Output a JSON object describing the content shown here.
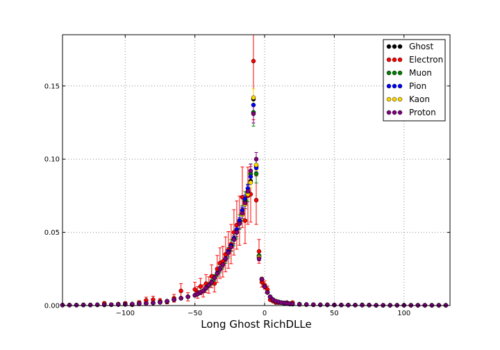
{
  "chart_data": {
    "type": "scatter",
    "title": "",
    "xlabel": "Long Ghost RichDLLe",
    "ylabel": "",
    "xlim": [
      -145,
      133
    ],
    "ylim": [
      0,
      0.185
    ],
    "xticks": [
      -100,
      -50,
      0,
      50,
      100
    ],
    "xtick_labels": [
      "−100",
      "−50",
      "0",
      "50",
      "100"
    ],
    "yticks": [
      0.0,
      0.05,
      0.1,
      0.15
    ],
    "ytick_labels": [
      "0.00",
      "0.05",
      "0.10",
      "0.15"
    ],
    "grid": true,
    "legend_position": "top-right",
    "x": [
      -145,
      -140,
      -135,
      -130,
      -125,
      -120,
      -115,
      -110,
      -105,
      -100,
      -95,
      -90,
      -85,
      -80,
      -75,
      -70,
      -65,
      -60,
      -55,
      -50,
      -48,
      -46,
      -44,
      -42,
      -40,
      -38,
      -36,
      -34,
      -32,
      -30,
      -28,
      -26,
      -24,
      -22,
      -20,
      -18,
      -16,
      -14,
      -12,
      -10,
      -8,
      -6,
      -4,
      -2,
      0,
      2,
      4,
      6,
      8,
      10,
      12,
      14,
      16,
      18,
      20,
      25,
      30,
      35,
      40,
      45,
      50,
      55,
      60,
      65,
      70,
      75,
      80,
      85,
      90,
      95,
      100,
      105,
      110,
      115,
      120,
      125,
      130
    ],
    "series": [
      {
        "name": "Ghost",
        "color": "#000000",
        "values": [
          0.0003,
          0.0003,
          0.0003,
          0.0004,
          0.0004,
          0.0005,
          0.0005,
          0.0006,
          0.0007,
          0.0008,
          0.001,
          0.0012,
          0.0015,
          0.0018,
          0.0022,
          0.003,
          0.004,
          0.005,
          0.006,
          0.007,
          0.008,
          0.009,
          0.01,
          0.012,
          0.014,
          0.016,
          0.019,
          0.022,
          0.025,
          0.028,
          0.032,
          0.036,
          0.04,
          0.045,
          0.05,
          0.056,
          0.063,
          0.071,
          0.078,
          0.085,
          0.141,
          0.095,
          0.034,
          0.018,
          0.013,
          0.009,
          0.006,
          0.004,
          0.003,
          0.0025,
          0.002,
          0.0018,
          0.0015,
          0.0012,
          0.001,
          0.0008,
          0.0007,
          0.0006,
          0.0005,
          0.0005,
          0.0004,
          0.0004,
          0.0003,
          0.0003,
          0.0003,
          0.0003,
          0.0002,
          0.0002,
          0.0002,
          0.0002,
          0.0002,
          0.0002,
          0.0002,
          0.0002,
          0.0002,
          0.0002,
          0.0002
        ]
      },
      {
        "name": "Electron",
        "color": "#ff0000",
        "values": [
          0.0,
          0.0,
          0.0,
          0.0005,
          0.0,
          0.0,
          0.0015,
          0.0,
          0.001,
          0.0015,
          0.0005,
          0.002,
          0.0035,
          0.004,
          0.003,
          0.0025,
          0.005,
          0.01,
          0.006,
          0.011,
          0.009,
          0.013,
          0.01,
          0.015,
          0.014,
          0.02,
          0.015,
          0.025,
          0.029,
          0.03,
          0.035,
          0.038,
          0.042,
          0.05,
          0.055,
          0.058,
          0.074,
          0.058,
          0.075,
          0.076,
          0.167,
          0.072,
          0.037,
          0.016,
          0.014,
          0.011,
          0.004,
          0.003,
          0.002,
          0.002,
          0.002,
          0.0015,
          0.002,
          0.001,
          0.002,
          0.001,
          0.0,
          0.0005,
          0.0,
          0.0005,
          0.0,
          0.0,
          0.0,
          0.0,
          0.0005,
          0.0,
          0.0,
          0.0,
          0.0,
          0.0,
          0.0,
          0.0,
          0.0,
          0.0,
          0.0,
          0.0,
          0.0
        ]
      },
      {
        "name": "Muon",
        "color": "#008000",
        "values": [
          0.0003,
          0.0003,
          0.0003,
          0.0004,
          0.0004,
          0.0005,
          0.0005,
          0.0006,
          0.0007,
          0.0008,
          0.001,
          0.0012,
          0.0015,
          0.0018,
          0.0022,
          0.003,
          0.004,
          0.005,
          0.006,
          0.007,
          0.008,
          0.009,
          0.01,
          0.012,
          0.014,
          0.016,
          0.019,
          0.022,
          0.025,
          0.028,
          0.032,
          0.036,
          0.041,
          0.045,
          0.05,
          0.057,
          0.063,
          0.072,
          0.077,
          0.09,
          0.132,
          0.09,
          0.034,
          0.018,
          0.013,
          0.009,
          0.006,
          0.004,
          0.003,
          0.0025,
          0.002,
          0.0018,
          0.0015,
          0.0012,
          0.001,
          0.0008,
          0.0007,
          0.0006,
          0.0005,
          0.0005,
          0.0004,
          0.0004,
          0.0003,
          0.0003,
          0.0003,
          0.0003,
          0.0002,
          0.0002,
          0.0002,
          0.0002,
          0.0002,
          0.0002,
          0.0002,
          0.0002,
          0.0002,
          0.0002,
          0.0002
        ]
      },
      {
        "name": "Pion",
        "color": "#0000ff",
        "values": [
          0.0003,
          0.0003,
          0.0003,
          0.0004,
          0.0004,
          0.0005,
          0.0005,
          0.0006,
          0.0007,
          0.0008,
          0.001,
          0.0012,
          0.0015,
          0.0018,
          0.0022,
          0.003,
          0.004,
          0.005,
          0.006,
          0.007,
          0.008,
          0.009,
          0.01,
          0.012,
          0.014,
          0.016,
          0.019,
          0.022,
          0.025,
          0.028,
          0.032,
          0.037,
          0.041,
          0.046,
          0.052,
          0.058,
          0.065,
          0.073,
          0.08,
          0.088,
          0.137,
          0.094,
          0.033,
          0.018,
          0.013,
          0.009,
          0.006,
          0.004,
          0.003,
          0.0025,
          0.002,
          0.0018,
          0.0015,
          0.0012,
          0.001,
          0.0008,
          0.0007,
          0.0006,
          0.0005,
          0.0005,
          0.0004,
          0.0004,
          0.0003,
          0.0003,
          0.0003,
          0.0003,
          0.0002,
          0.0002,
          0.0002,
          0.0002,
          0.0002,
          0.0002,
          0.0002,
          0.0002,
          0.0002,
          0.0002,
          0.0002
        ]
      },
      {
        "name": "Kaon",
        "color": "#ffd700",
        "values": [
          0.0003,
          0.0003,
          0.0003,
          0.0004,
          0.0004,
          0.0005,
          0.0005,
          0.0006,
          0.0007,
          0.0008,
          0.001,
          0.0012,
          0.0015,
          0.0018,
          0.0022,
          0.003,
          0.004,
          0.005,
          0.006,
          0.007,
          0.008,
          0.009,
          0.01,
          0.012,
          0.014,
          0.016,
          0.019,
          0.022,
          0.025,
          0.028,
          0.032,
          0.036,
          0.04,
          0.045,
          0.05,
          0.056,
          0.062,
          0.069,
          0.076,
          0.084,
          0.142,
          0.096,
          0.033,
          0.018,
          0.013,
          0.009,
          0.006,
          0.004,
          0.003,
          0.0025,
          0.002,
          0.0018,
          0.0015,
          0.0012,
          0.001,
          0.0008,
          0.0007,
          0.0006,
          0.0005,
          0.0005,
          0.0004,
          0.0004,
          0.0003,
          0.0003,
          0.0003,
          0.0003,
          0.0002,
          0.0002,
          0.0002,
          0.0002,
          0.0002,
          0.0002,
          0.0002,
          0.0002,
          0.0002,
          0.0002,
          0.0002
        ]
      },
      {
        "name": "Proton",
        "color": "#800080",
        "values": [
          0.0003,
          0.0003,
          0.0003,
          0.0004,
          0.0004,
          0.0005,
          0.0005,
          0.0006,
          0.0007,
          0.0008,
          0.001,
          0.0012,
          0.0015,
          0.0018,
          0.0022,
          0.003,
          0.004,
          0.005,
          0.006,
          0.007,
          0.008,
          0.009,
          0.01,
          0.012,
          0.014,
          0.016,
          0.019,
          0.022,
          0.025,
          0.028,
          0.032,
          0.036,
          0.04,
          0.045,
          0.05,
          0.056,
          0.063,
          0.07,
          0.078,
          0.092,
          0.131,
          0.1,
          0.032,
          0.018,
          0.013,
          0.009,
          0.006,
          0.004,
          0.003,
          0.0025,
          0.002,
          0.0018,
          0.0015,
          0.0012,
          0.001,
          0.0008,
          0.0007,
          0.0006,
          0.0005,
          0.0005,
          0.0004,
          0.0004,
          0.0003,
          0.0003,
          0.0003,
          0.0003,
          0.0002,
          0.0002,
          0.0002,
          0.0002,
          0.0002,
          0.0002,
          0.0002,
          0.0002,
          0.0002,
          0.0002,
          0.0002
        ]
      }
    ]
  }
}
